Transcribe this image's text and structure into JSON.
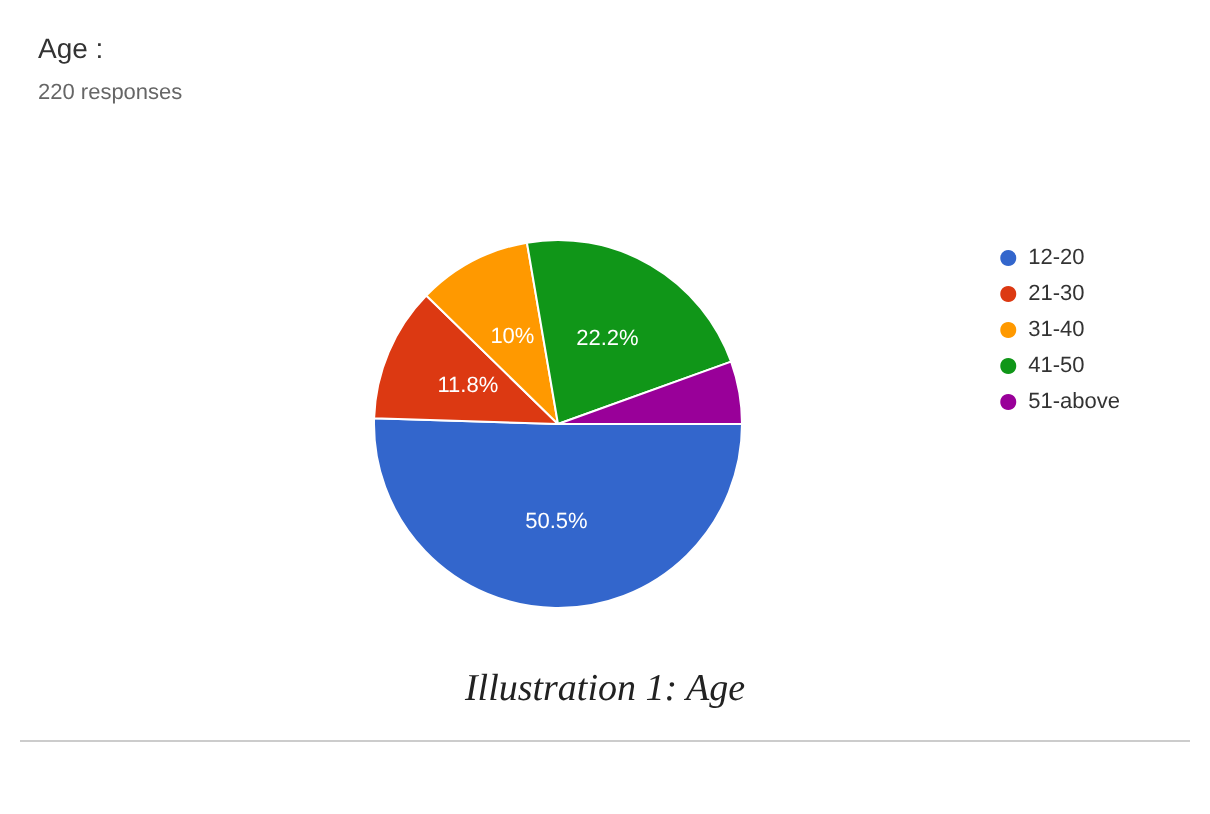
{
  "chart_data": {
    "type": "pie",
    "title": "Age :",
    "subtitle": "220 responses",
    "categories": [
      "12-20",
      "21-30",
      "31-40",
      "41-50",
      "51-above"
    ],
    "values": [
      50.5,
      11.8,
      10,
      22.2,
      5.5
    ],
    "colors": [
      "#3366cc",
      "#dc3912",
      "#ff9900",
      "#109618",
      "#990099"
    ],
    "value_labels": [
      "50.5%",
      "11.8%",
      "10%",
      "22.2%",
      null
    ],
    "legend": "right",
    "annotations": [
      "Illustration 1: Age"
    ]
  }
}
